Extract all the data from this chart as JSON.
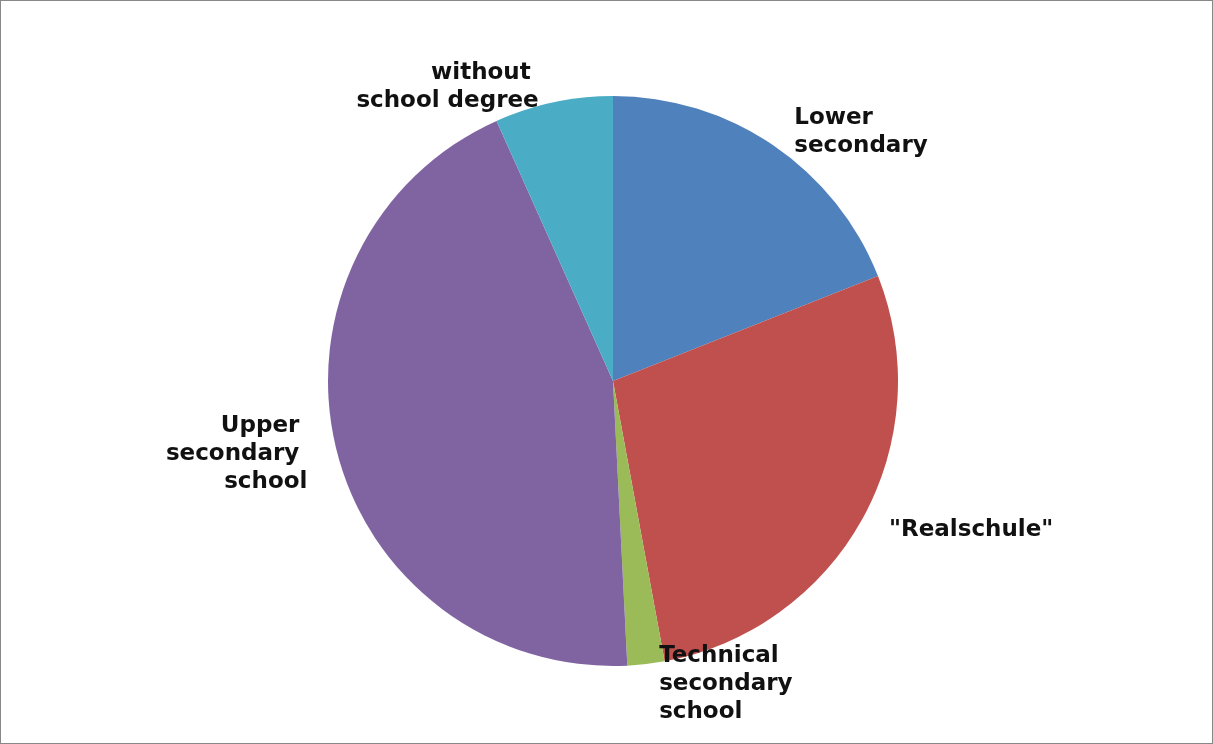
{
  "chart_data": {
    "type": "pie",
    "categories": [
      "Lower secondary",
      "\"Realschule\"",
      "Technical secondary school",
      "Upper secondary school",
      "without school degree"
    ],
    "values": [
      19.0,
      28.1,
      2.1,
      44.1,
      6.7
    ],
    "colors": [
      "#4f81bd",
      "#c0504d",
      "#9bbb59",
      "#8064a2",
      "#4bacc6"
    ],
    "legend": false
  }
}
